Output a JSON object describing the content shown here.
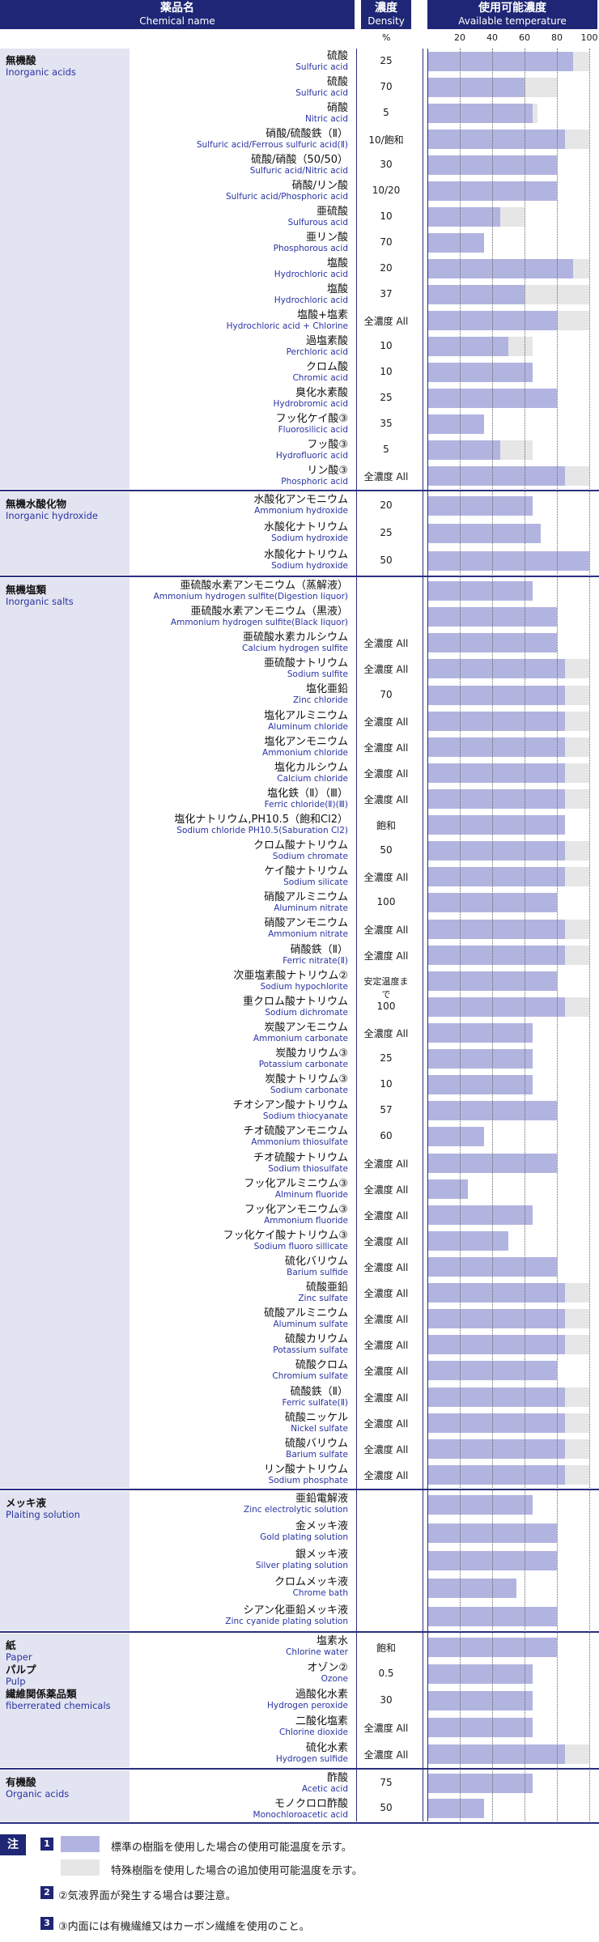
{
  "header": {
    "name_ja": "薬品名",
    "name_en": "Chemical name",
    "density_ja": "濃度",
    "density_en": "Density",
    "temp_ja": "使用可能濃度",
    "temp_en": "Available temperature",
    "pct": "%",
    "ticks": [
      "20",
      "40",
      "60",
      "80",
      "100"
    ]
  },
  "colors": {
    "header_bg": "#1e2675",
    "standard": "#b2b4e0",
    "additional": "#e6e6e6",
    "category_bg": "#e3e4f1"
  },
  "sections": [
    {
      "cat_ja": [
        "無機酸"
      ],
      "cat_en": [
        "Inorganic acids"
      ],
      "rows": [
        {
          "ja": "硫酸",
          "en": "Sulfuric acid",
          "d": "25",
          "s": 90,
          "a": 100
        },
        {
          "ja": "硫酸",
          "en": "Sulfuric acid",
          "d": "70",
          "s": 60,
          "a": 80
        },
        {
          "ja": "硝酸",
          "en": "Nitric acid",
          "d": "5",
          "s": 65,
          "a": 68
        },
        {
          "ja": "硝酸/硫酸鉄（Ⅱ）",
          "en": "Sulfuric acid/Ferrous sulfuric acid(Ⅱ)",
          "d": "10/飽和",
          "s": 85,
          "a": 100
        },
        {
          "ja": "硫酸/硝酸（50/50）",
          "en": "Sulfuric acid/Nitric acid",
          "d": "30",
          "s": 80,
          "a": 0
        },
        {
          "ja": "硝酸/リン酸",
          "en": "Sulfuric acid/Phosphoric acid",
          "d": "10/20",
          "s": 80,
          "a": 0
        },
        {
          "ja": "亜硫酸",
          "en": "Sulfurous acid",
          "d": "10",
          "s": 45,
          "a": 60
        },
        {
          "ja": "亜リン酸",
          "en": "Phosphorous acid",
          "d": "70",
          "s": 35,
          "a": 0
        },
        {
          "ja": "塩酸",
          "en": "Hydrochloric acid",
          "d": "20",
          "s": 90,
          "a": 100
        },
        {
          "ja": "塩酸",
          "en": "Hydrochloric acid",
          "d": "37",
          "s": 60,
          "a": 100
        },
        {
          "ja": "塩酸+塩素",
          "en": "Hydrochloric acid + Chlorine",
          "d": "全濃度 All",
          "s": 80,
          "a": 100
        },
        {
          "ja": "過塩素酸",
          "en": "Perchloric acid",
          "d": "10",
          "s": 50,
          "a": 65
        },
        {
          "ja": "クロム酸",
          "en": "Chromic acid",
          "d": "10",
          "s": 65,
          "a": 0
        },
        {
          "ja": "臭化水素酸",
          "en": "Hydrobromic acid",
          "d": "25",
          "s": 80,
          "a": 0
        },
        {
          "ja": "フッ化ケイ酸③",
          "en": "Fluorosilicic acid",
          "d": "35",
          "s": 35,
          "a": 0
        },
        {
          "ja": "フッ酸③",
          "en": "Hydrofluoric acid",
          "d": "5",
          "s": 45,
          "a": 65
        },
        {
          "ja": "リン酸③",
          "en": "Phosphoric acid",
          "d": "全濃度 All",
          "s": 85,
          "a": 100
        }
      ]
    },
    {
      "cat_ja": [
        "無機水酸化物"
      ],
      "cat_en": [
        "Inorganic hydroxide"
      ],
      "rows": [
        {
          "ja": "水酸化アンモニウム",
          "en": "Ammonium hydroxide",
          "d": "20",
          "s": 65,
          "a": 0
        },
        {
          "ja": "水酸化ナトリウム",
          "en": "Sodium hydroxide",
          "d": "25",
          "s": 70,
          "a": 0
        },
        {
          "ja": "水酸化ナトリウム",
          "en": "Sodium hydroxide",
          "d": "50",
          "s": 100,
          "a": 0
        }
      ]
    },
    {
      "cat_ja": [
        "無機塩類"
      ],
      "cat_en": [
        "Inorganic salts"
      ],
      "rows": [
        {
          "ja": "亜硫酸水素アンモニウム（蒸解液）",
          "en": "Ammonium hydrogen sulfite(Digestion liquor)",
          "d": "",
          "s": 65,
          "a": 0
        },
        {
          "ja": "亜硫酸水素アンモニウム（黒液）",
          "en": "Ammonium hydrogen sulfite(Black liquor)",
          "d": "",
          "s": 80,
          "a": 0
        },
        {
          "ja": "亜硫酸水素カルシウム",
          "en": "Calcium hydrogen sulfite",
          "d": "全濃度 All",
          "s": 80,
          "a": 0
        },
        {
          "ja": "亜硫酸ナトリウム",
          "en": "Sodium sulfite",
          "d": "全濃度 All",
          "s": 85,
          "a": 100
        },
        {
          "ja": "塩化亜鉛",
          "en": "Zinc chloride",
          "d": "70",
          "s": 85,
          "a": 100
        },
        {
          "ja": "塩化アルミニウム",
          "en": "Aluminum chloride",
          "d": "全濃度 All",
          "s": 85,
          "a": 100
        },
        {
          "ja": "塩化アンモニウム",
          "en": "Ammonium chloride",
          "d": "全濃度 All",
          "s": 85,
          "a": 100
        },
        {
          "ja": "塩化カルシウム",
          "en": "Calcium chloride",
          "d": "全濃度 All",
          "s": 85,
          "a": 100
        },
        {
          "ja": "塩化鉄（Ⅱ）（Ⅲ）",
          "en": "Ferric chloride(Ⅱ)(Ⅲ)",
          "d": "全濃度 All",
          "s": 85,
          "a": 100
        },
        {
          "ja": "塩化ナトリウム,PH10.5（飽和Cl2）",
          "en": "Sodium chloride PH10.5(Saburation Cl2)",
          "d": "飽和",
          "s": 85,
          "a": 0
        },
        {
          "ja": "クロム酸ナトリウム",
          "en": "Sodium chromate",
          "d": "50",
          "s": 85,
          "a": 100
        },
        {
          "ja": "ケイ酸ナトリウム",
          "en": "Sodium silicate",
          "d": "全濃度 All",
          "s": 85,
          "a": 100
        },
        {
          "ja": "硝酸アルミニウム",
          "en": "Aluminum nitrate",
          "d": "100",
          "s": 80,
          "a": 0
        },
        {
          "ja": "硝酸アンモニウム",
          "en": "Ammonium nitrate",
          "d": "全濃度 All",
          "s": 85,
          "a": 100
        },
        {
          "ja": "硝酸鉄（Ⅱ）",
          "en": "Ferric nitrate(Ⅱ)",
          "d": "全濃度 All",
          "s": 85,
          "a": 100
        },
        {
          "ja": "次亜塩素酸ナトリウム②",
          "en": "Sodium hypochlorite",
          "d": "安定温度まで",
          "s": 80,
          "a": 0
        },
        {
          "ja": "重クロム酸ナトリウム",
          "en": "Sodium dichromate",
          "d": "100",
          "s": 85,
          "a": 100
        },
        {
          "ja": "炭酸アンモニウム",
          "en": "Ammonium carbonate",
          "d": "全濃度 All",
          "s": 65,
          "a": 0
        },
        {
          "ja": "炭酸カリウム③",
          "en": "Potassium carbonate",
          "d": "25",
          "s": 65,
          "a": 0
        },
        {
          "ja": "炭酸ナトリウム③",
          "en": "Sodium carbonate",
          "d": "10",
          "s": 65,
          "a": 0
        },
        {
          "ja": "チオシアン酸ナトリウム",
          "en": "Sodium thiocyanate",
          "d": "57",
          "s": 80,
          "a": 0
        },
        {
          "ja": "チオ硫酸アンモニウム",
          "en": "Ammonium thiosulfate",
          "d": "60",
          "s": 35,
          "a": 0
        },
        {
          "ja": "チオ硫酸ナトリウム",
          "en": "Sodium thiosulfate",
          "d": "全濃度 All",
          "s": 80,
          "a": 0
        },
        {
          "ja": "フッ化アルミニウム③",
          "en": "Alminum fluoride",
          "d": "全濃度 All",
          "s": 25,
          "a": 0
        },
        {
          "ja": "フッ化アンモニウム③",
          "en": "Ammonium fluoride",
          "d": "全濃度 All",
          "s": 65,
          "a": 0
        },
        {
          "ja": "フッ化ケイ酸ナトリウム③",
          "en": "Sodium fluoro sillicate",
          "d": "全濃度 All",
          "s": 50,
          "a": 0
        },
        {
          "ja": "硫化バリウム",
          "en": "Barium sulfide",
          "d": "全濃度 All",
          "s": 80,
          "a": 0
        },
        {
          "ja": "硫酸亜鉛",
          "en": "Zinc sulfate",
          "d": "全濃度 All",
          "s": 85,
          "a": 100
        },
        {
          "ja": "硫酸アルミニウム",
          "en": "Aluminum sulfate",
          "d": "全濃度 All",
          "s": 85,
          "a": 100
        },
        {
          "ja": "硫酸カリウム",
          "en": "Potassium sulfate",
          "d": "全濃度 All",
          "s": 85,
          "a": 100
        },
        {
          "ja": "硫酸クロム",
          "en": "Chromium sulfate",
          "d": "全濃度 All",
          "s": 80,
          "a": 0
        },
        {
          "ja": "硫酸鉄（Ⅱ）",
          "en": "Ferric sulfate(Ⅱ)",
          "d": "全濃度 All",
          "s": 85,
          "a": 100
        },
        {
          "ja": "硫酸ニッケル",
          "en": "Nickel sulfate",
          "d": "全濃度 All",
          "s": 85,
          "a": 100
        },
        {
          "ja": "硫酸バリウム",
          "en": "Barium sulfate",
          "d": "全濃度 All",
          "s": 85,
          "a": 100
        },
        {
          "ja": "リン酸ナトリウム",
          "en": "Sodium phosphate",
          "d": "全濃度 All",
          "s": 85,
          "a": 100
        }
      ]
    },
    {
      "cat_ja": [
        "メッキ液"
      ],
      "cat_en": [
        "Plaiting solution"
      ],
      "rows": [
        {
          "ja": "亜鉛電解液",
          "en": "Zinc electrolytic solution",
          "d": "",
          "s": 65,
          "a": 0
        },
        {
          "ja": "金メッキ液",
          "en": "Gold plating solution",
          "d": "",
          "s": 80,
          "a": 0
        },
        {
          "ja": "銀メッキ液",
          "en": "Silver plating solution",
          "d": "",
          "s": 80,
          "a": 0
        },
        {
          "ja": "クロムメッキ液",
          "en": "Chrome bath",
          "d": "",
          "s": 55,
          "a": 0
        },
        {
          "ja": "シアン化亜鉛メッキ液",
          "en": "Zinc cyanide plating solution",
          "d": "",
          "s": 80,
          "a": 0
        }
      ]
    },
    {
      "cat_ja": [
        "紙",
        "パルプ",
        "繊維関係薬品類"
      ],
      "cat_en": [
        "Paper",
        "Pulp",
        "fiberrerated chemicals"
      ],
      "rows": [
        {
          "ja": "塩素水",
          "en": "Chlorine water",
          "d": "飽和",
          "s": 80,
          "a": 0
        },
        {
          "ja": "オゾン②",
          "en": "Ozone",
          "d": "0.5",
          "s": 65,
          "a": 0
        },
        {
          "ja": "過酸化水素",
          "en": "Hydrogen peroxide",
          "d": "30",
          "s": 65,
          "a": 0
        },
        {
          "ja": "二酸化塩素",
          "en": "Chlorine dioxide",
          "d": "全濃度 All",
          "s": 65,
          "a": 0
        },
        {
          "ja": "硫化水素",
          "en": "Hydrogen sulfide",
          "d": "全濃度 All",
          "s": 85,
          "a": 100
        }
      ]
    },
    {
      "cat_ja": [
        "有機酸"
      ],
      "cat_en": [
        "Organic acids"
      ],
      "rows": [
        {
          "ja": "酢酸",
          "en": "Acetic acid",
          "d": "75",
          "s": 65,
          "a": 0
        },
        {
          "ja": "モノクロロ酢酸",
          "en": "Monochloroacetic acid",
          "d": "50",
          "s": 35,
          "a": 0
        }
      ]
    }
  ],
  "notes": {
    "label": "注",
    "n1": "1",
    "legend1": "標準の樹脂を使用した場合の使用可能温度を示す。",
    "legend2": "特殊樹脂を使用した場合の追加使用可能温度を示す。",
    "n2": "2",
    "note2": "②気液界面が発生する場合は要注意。",
    "n3": "3",
    "note3": "③内面には有機繊維又はカーボン繊維を使用のこと。"
  }
}
